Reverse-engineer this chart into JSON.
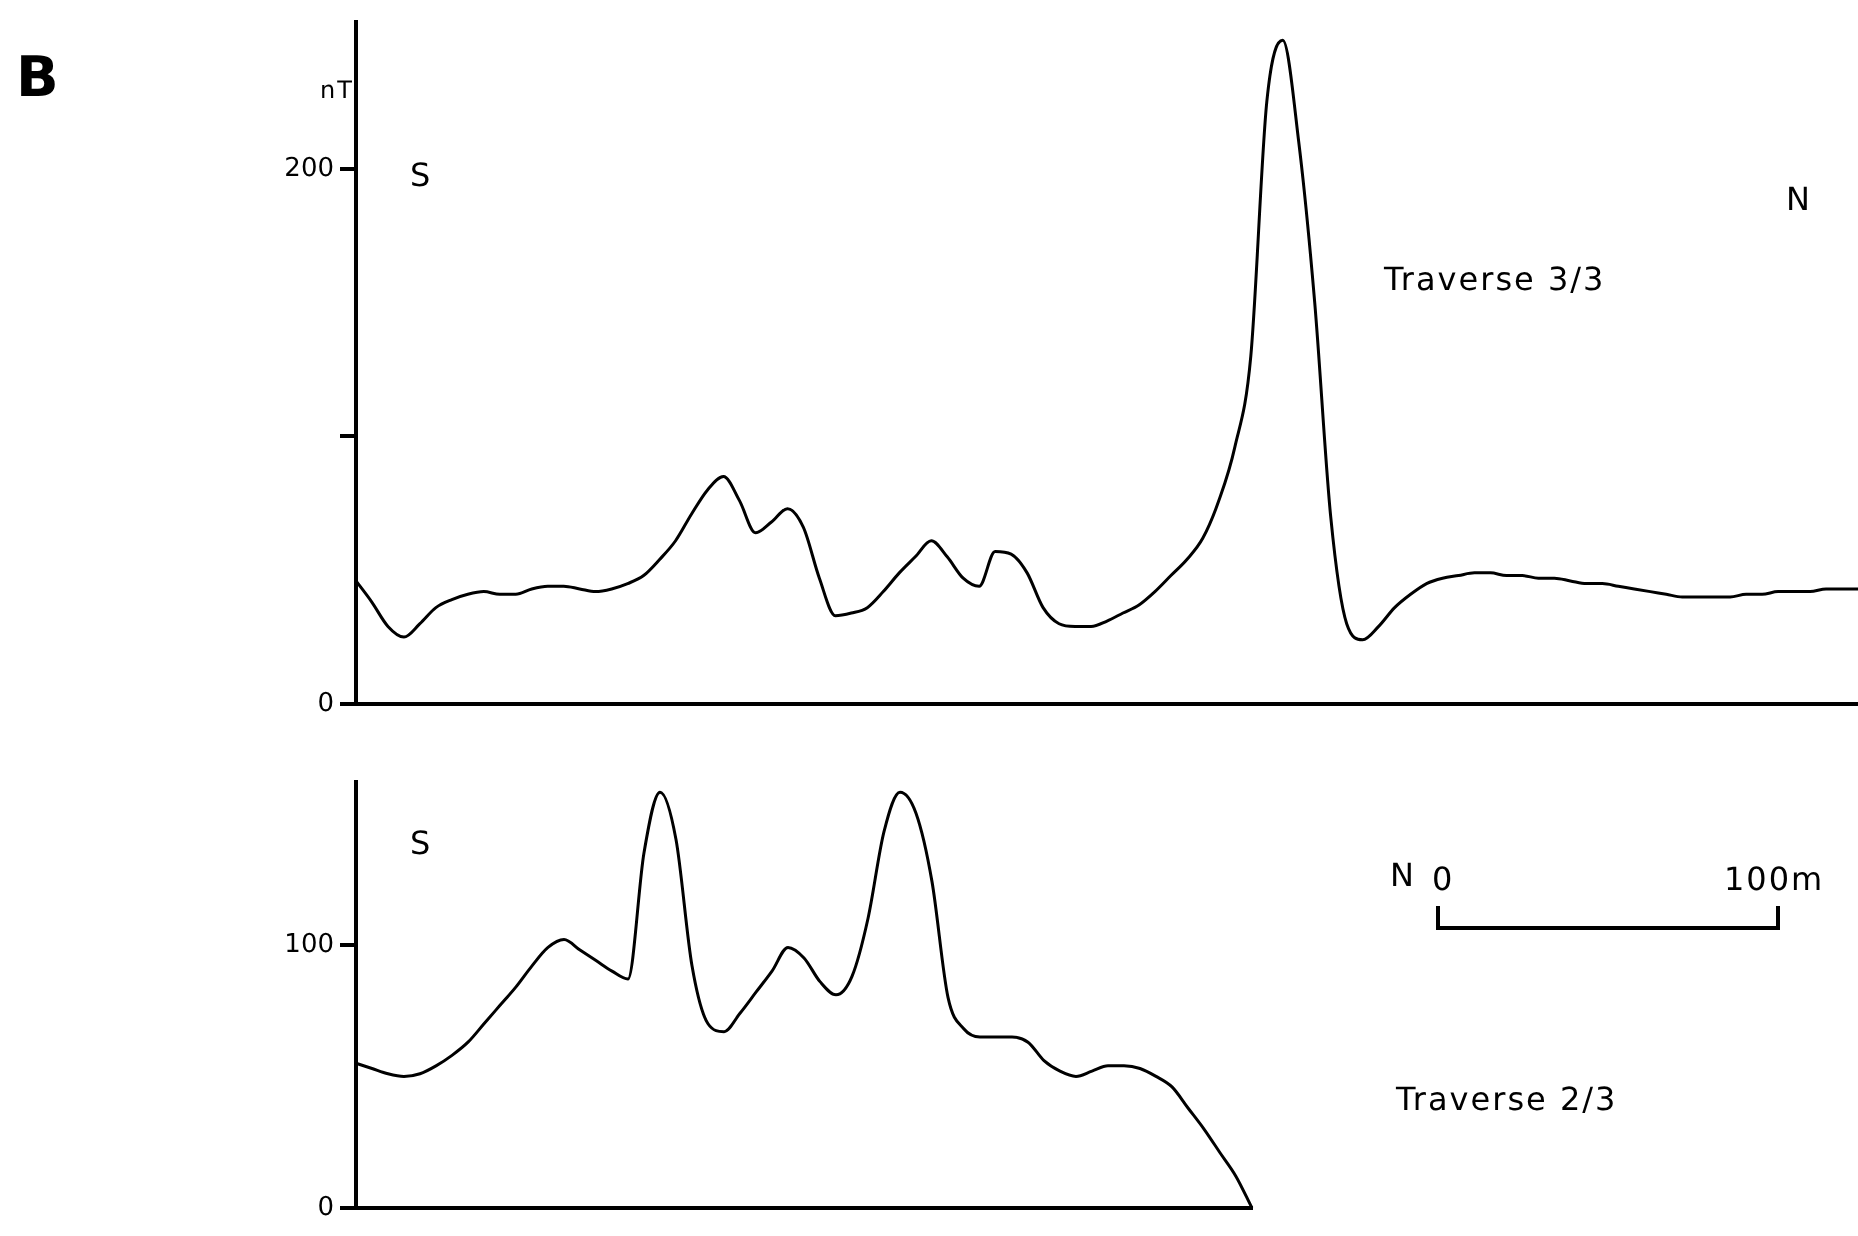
{
  "chart_data": [
    {
      "type": "line",
      "title": "B",
      "ylabel": "nT",
      "annotations": [
        "S",
        "N",
        "Traverse 3/3"
      ],
      "marker": "none",
      "tick_labels": "y",
      "ylim": [
        0,
        255
      ],
      "yticks": [
        0,
        {
          "value": 100,
          "label": null
        },
        200
      ],
      "categories": [
        null,
        null,
        null,
        null,
        null,
        null,
        null,
        null,
        null,
        null,
        null,
        null,
        null,
        null,
        null,
        null,
        null,
        null,
        null,
        null,
        null,
        null,
        null,
        null,
        null,
        null,
        null,
        null,
        null,
        null,
        null,
        null,
        null,
        null,
        null,
        null,
        null,
        null,
        null,
        null,
        null,
        null,
        null,
        null,
        null,
        null,
        null,
        null,
        null,
        null,
        null,
        null,
        null,
        null,
        null,
        null,
        null,
        null,
        null,
        null,
        null,
        null,
        null,
        null,
        null,
        null,
        null,
        null,
        null,
        null,
        null,
        null,
        null,
        null,
        null,
        null,
        null,
        null,
        null,
        null,
        null,
        null,
        null,
        null,
        null,
        null,
        null,
        null,
        null,
        null,
        null,
        null,
        null,
        null,
        null
      ],
      "series": [
        {
          "color": "#000000",
          "values": [
            46,
            38,
            29,
            25,
            30,
            36,
            39,
            41,
            42,
            41,
            41,
            43,
            44,
            44,
            43,
            42,
            43,
            45,
            48,
            54,
            61,
            71,
            80,
            85,
            76,
            64,
            68,
            73,
            66,
            47,
            33,
            34,
            36,
            42,
            49,
            55,
            61,
            55,
            47,
            44,
            57,
            56,
            49,
            36,
            30,
            29,
            29,
            31,
            34,
            37,
            42,
            48,
            54,
            62,
            76,
            96,
            130,
            225,
            248,
            210,
            150,
            70,
            30,
            24,
            29,
            36,
            41,
            45,
            47,
            48,
            49,
            49,
            48,
            48,
            47,
            47,
            46,
            45,
            45,
            44,
            43,
            42,
            41,
            40,
            40,
            40,
            40,
            41,
            41,
            42,
            42,
            42,
            43,
            43,
            43
          ]
        }
      ]
    },
    {
      "type": "line",
      "annotations": [
        "S",
        "N",
        "Traverse 2/3",
        "0",
        "100m"
      ],
      "marker": "none",
      "tick_labels": "y",
      "ylim": [
        0,
        162
      ],
      "yticks": [
        0,
        100
      ],
      "categories": [
        null,
        null,
        null,
        null,
        null,
        null,
        null,
        null,
        null,
        null,
        null,
        null,
        null,
        null,
        null,
        null,
        null,
        null,
        null,
        null,
        null,
        null,
        null,
        null,
        null,
        null,
        null,
        null,
        null,
        null,
        null,
        null,
        null,
        null,
        null,
        null,
        null,
        null,
        null,
        null,
        null,
        null,
        null,
        null,
        null,
        null,
        null,
        null,
        null,
        null,
        null,
        null,
        null,
        null,
        null,
        null,
        null
      ],
      "series": [
        {
          "color": "#000000",
          "values": [
            55,
            53,
            51,
            50,
            51,
            54,
            58,
            63,
            70,
            77,
            84,
            92,
            99,
            102,
            98,
            94,
            90,
            87,
            135,
            158,
            140,
            92,
            70,
            67,
            74,
            82,
            90,
            99,
            95,
            86,
            81,
            88,
            110,
            143,
            158,
            150,
            124,
            80,
            68,
            65,
            65,
            65,
            63,
            56,
            52,
            50,
            52,
            54,
            54,
            53,
            50,
            46,
            38,
            30,
            21,
            12,
            0
          ]
        }
      ]
    }
  ]
}
